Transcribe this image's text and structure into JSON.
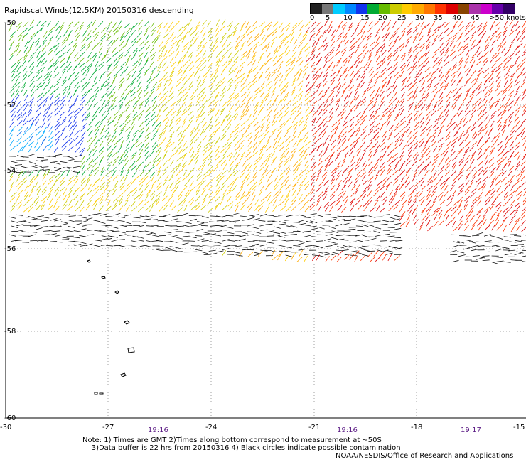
{
  "title": "Rapidscat Winds(12.5KM) 20150316 descending",
  "legend": {
    "ticks": [
      "0",
      "5",
      "10",
      "15",
      "20",
      "25",
      "30",
      "35",
      "40",
      "45",
      ">50 knots"
    ],
    "colors": [
      "#222222",
      "#777777",
      "#00ccff",
      "#0088ff",
      "#1133ee",
      "#00aa33",
      "#66bb00",
      "#cccc00",
      "#ffcc00",
      "#ffaa00",
      "#ff7700",
      "#ff3300",
      "#dd0000",
      "#884400",
      "#aa33aa",
      "#cc00cc",
      "#6600aa",
      "#330066"
    ]
  },
  "map": {
    "lat_labels": [
      "-50",
      "-52",
      "-54",
      "-56",
      "-58",
      "-60"
    ],
    "lon_labels": [
      "-30",
      "-27",
      "-24",
      "-21",
      "-18",
      "-15"
    ],
    "gmt_times": [
      "19:16",
      "19:16",
      "19:17"
    ]
  },
  "notes": {
    "line1": "Note: 1) Times are GMT 2)Times along bottom correspond to measurement at ~50S",
    "line2": "3)Data buffer is 22 hrs from 20150316 4) Black circles indicate possible contamination"
  },
  "agency": "NOAA/NESDIS/Office of Research and Applications"
}
